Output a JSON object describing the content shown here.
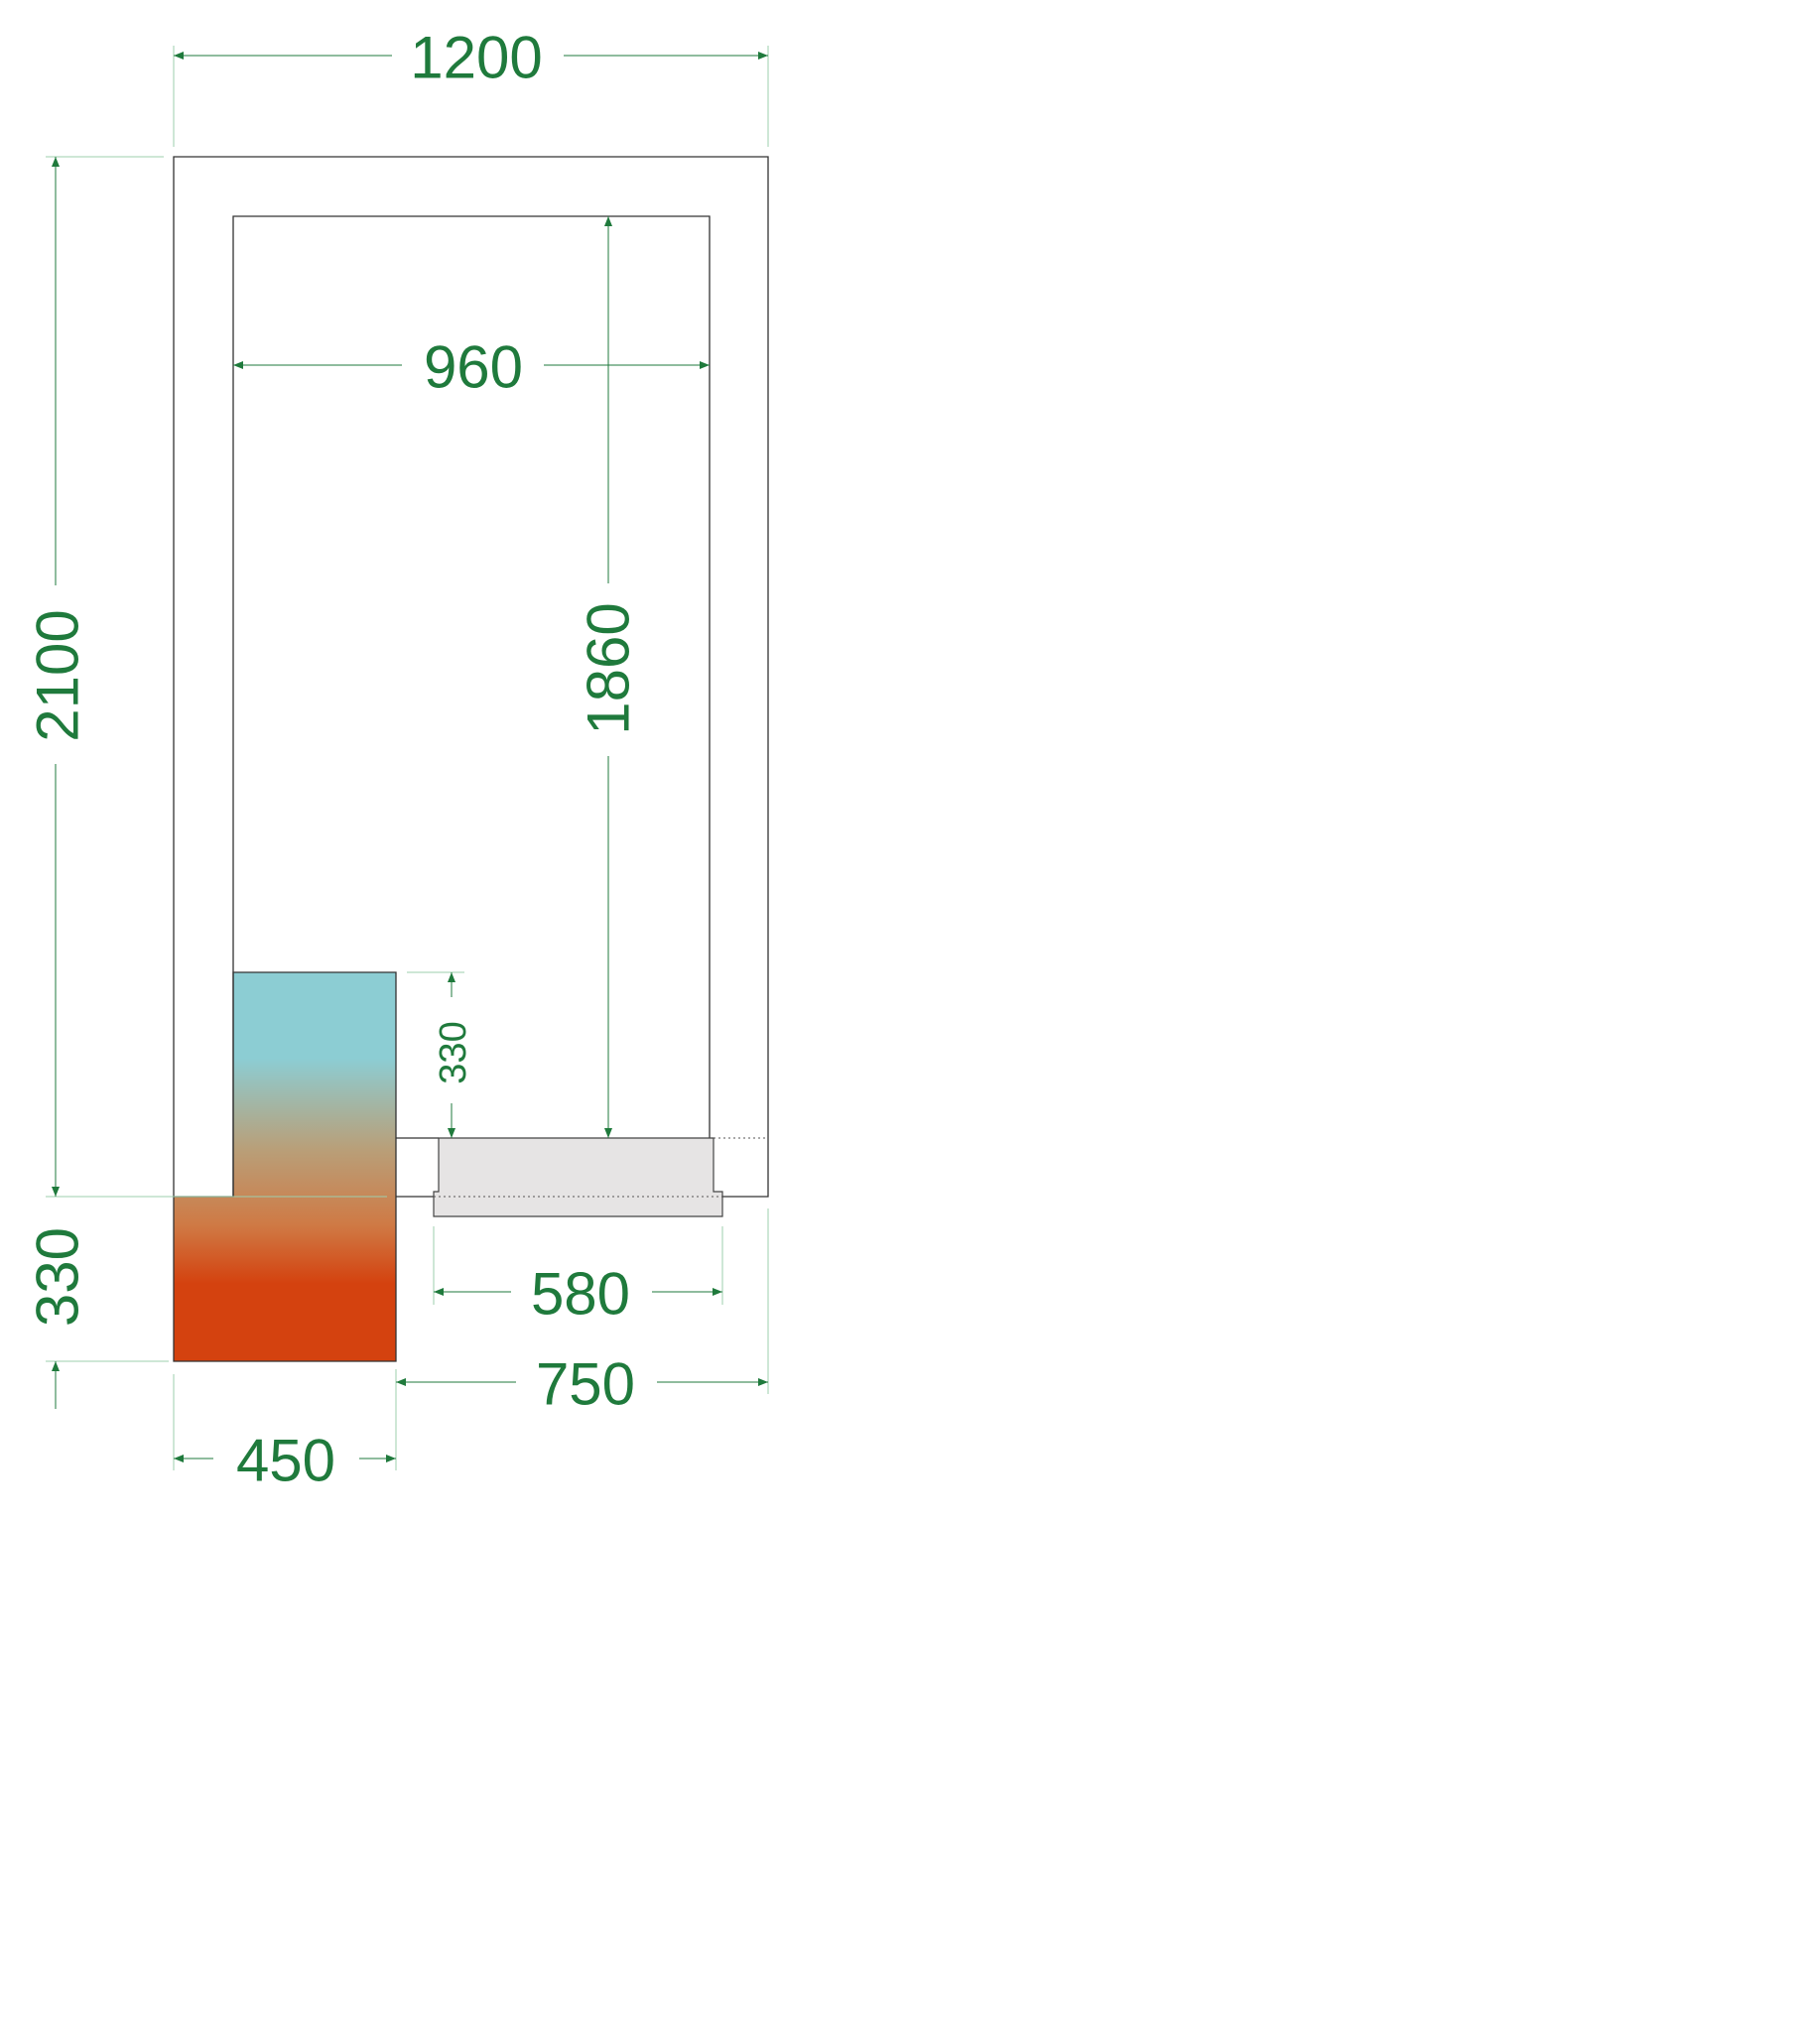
{
  "dimensions": {
    "overall_width": "1200",
    "overall_height": "2100",
    "inner_width": "960",
    "inner_height": "1860",
    "step_height": "330",
    "base_height": "330",
    "sill_width": "580",
    "door_offset": "750",
    "block_width": "450"
  },
  "colors": {
    "dimension": "#1f7a3c",
    "gradient_top": "#8ccdd3",
    "gradient_bottom": "#d4420f",
    "sill": "#e6e4e4"
  }
}
